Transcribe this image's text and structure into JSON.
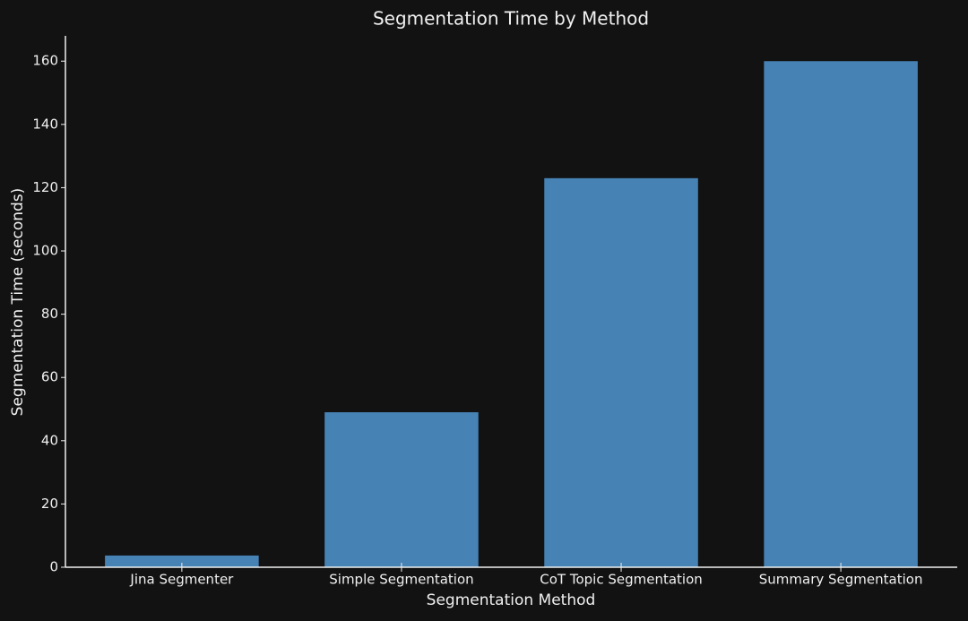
{
  "chart_data": {
    "type": "bar",
    "title": "Segmentation Time by Method",
    "x_label": "Segmentation Method",
    "y_label": "Segmentation Time (seconds)",
    "categories": [
      "Jina Segmenter",
      "Simple Segmentation",
      "CoT Topic Segmentation",
      "Summary Segmentation"
    ],
    "values": [
      3.7,
      49,
      123,
      160
    ],
    "color": "#4682b4",
    "ylim": [
      0,
      168
    ],
    "yticks": [
      0,
      20,
      40,
      60,
      80,
      100,
      120,
      140,
      160
    ],
    "grid": false
  }
}
